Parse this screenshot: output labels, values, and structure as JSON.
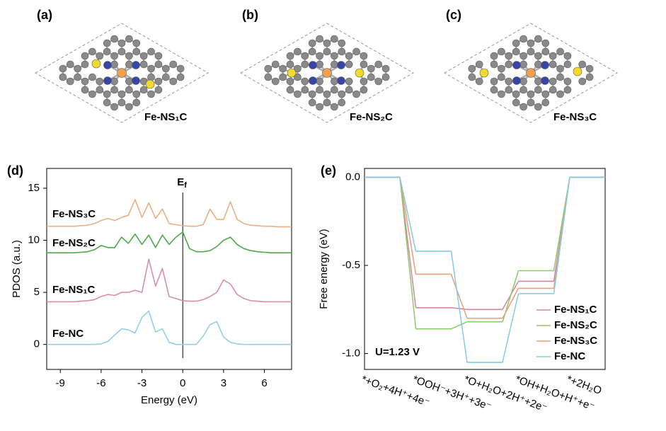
{
  "structures": [
    {
      "panel": "(a)",
      "label": "Fe-NS₁C"
    },
    {
      "panel": "(b)",
      "label": "Fe-NS₂C"
    },
    {
      "panel": "(c)",
      "label": "Fe-NS₃C"
    }
  ],
  "chart_data": [
    {
      "type": "line",
      "panel": "(d)",
      "xlabel": "Energy (eV)",
      "ylabel": "PDOS (a.u.)",
      "annotation": {
        "main": "E",
        "sub": "f"
      },
      "xlim": [
        -10,
        8
      ],
      "ylim": [
        -2.4,
        16.9
      ],
      "xticks": [
        -9,
        -6,
        -3,
        0,
        3,
        6
      ],
      "yticks": [
        0,
        5,
        10,
        15
      ],
      "x": [
        -10,
        -9.5,
        -9,
        -8.5,
        -8,
        -7.5,
        -7,
        -6.5,
        -6,
        -5.5,
        -5,
        -4.5,
        -4,
        -3.5,
        -3,
        -2.5,
        -2,
        -1.5,
        -1,
        -0.5,
        0,
        0.5,
        1,
        1.5,
        2,
        2.5,
        3,
        3.5,
        4,
        4.5,
        5,
        5.5,
        6,
        6.5,
        7,
        7.5,
        8
      ],
      "series": [
        {
          "name": "Fe-NS₃C",
          "color": "#e9b088",
          "values": [
            11.35,
            11.35,
            11.35,
            11.35,
            11.35,
            11.4,
            11.45,
            11.6,
            11.9,
            12.1,
            11.9,
            12.2,
            12.4,
            13.9,
            12.2,
            13.6,
            12.1,
            13.0,
            11.6,
            11.5,
            11.4,
            11.35,
            11.35,
            11.5,
            13.0,
            12.0,
            12.0,
            13.7,
            12.0,
            11.6,
            11.45,
            11.4,
            11.35,
            11.35,
            11.3,
            11.3,
            11.3
          ]
        },
        {
          "name": "Fe-NS₂C",
          "color": "#4eaa4c",
          "values": [
            8.8,
            8.8,
            8.8,
            8.8,
            8.8,
            8.85,
            8.9,
            9.1,
            9.5,
            9.3,
            9.3,
            10.3,
            9.7,
            10.6,
            9.6,
            10.5,
            9.3,
            10.5,
            9.6,
            10.3,
            10.8,
            9.2,
            8.9,
            8.9,
            9.0,
            9.4,
            10.0,
            10.3,
            9.6,
            9.2,
            9.0,
            8.9,
            8.85,
            8.8,
            8.8,
            8.8,
            8.8
          ]
        },
        {
          "name": "Fe-NS₁C",
          "color": "#d98fab",
          "values": [
            4.1,
            4.1,
            4.1,
            4.1,
            4.1,
            4.15,
            4.2,
            4.3,
            4.6,
            4.8,
            4.7,
            5.0,
            5.0,
            5.2,
            5.0,
            8.2,
            5.6,
            7.3,
            4.6,
            4.4,
            4.2,
            4.15,
            4.15,
            4.3,
            4.6,
            5.0,
            6.2,
            5.8,
            4.8,
            4.4,
            4.2,
            4.15,
            4.1,
            4.1,
            4.1,
            4.1,
            4.1
          ]
        },
        {
          "name": "Fe-NC",
          "color": "#92d0e2",
          "values": [
            0,
            0,
            0,
            0,
            0,
            0,
            0,
            0,
            0.05,
            0.3,
            0.9,
            1.5,
            1.4,
            1.1,
            2.6,
            3.2,
            1.2,
            1.5,
            0.2,
            0,
            0,
            0,
            0,
            0.8,
            1.9,
            2.2,
            0.7,
            0.2,
            0.05,
            0,
            0,
            0,
            0,
            0,
            0,
            0,
            0
          ]
        }
      ]
    },
    {
      "type": "step",
      "panel": "(e)",
      "ylabel": "Free energy (eV)",
      "annotation": "U=1.23 V",
      "ylim": [
        -1.09,
        0.05
      ],
      "yticks": [
        {
          "value": 0,
          "label": "0.0"
        },
        -0.5,
        {
          "value": -1,
          "label": "-1.0"
        }
      ],
      "categories": [
        "*+O₂+4H⁺+4e⁻",
        "*OOH⁻+3H⁺+3e⁻",
        "*O+H₂O+2H⁺+2e⁻",
        "*OH+H₂O+H⁺+e⁻",
        "*+2H₂O"
      ],
      "series": [
        {
          "name": "Fe-NS₁C",
          "color": "#d8849f",
          "values": [
            0,
            -0.74,
            -0.75,
            -0.59,
            0
          ]
        },
        {
          "name": "Fe-NS₂C",
          "color": "#8ec86c",
          "values": [
            0,
            -0.86,
            -0.82,
            -0.53,
            0
          ]
        },
        {
          "name": "Fe-NS₃C",
          "color": "#e8a07a",
          "values": [
            0,
            -0.55,
            -0.8,
            -0.63,
            0
          ]
        },
        {
          "name": "Fe-NC",
          "color": "#86c9e6",
          "values": [
            0,
            -0.42,
            -1.05,
            -0.66,
            0
          ]
        }
      ]
    }
  ]
}
